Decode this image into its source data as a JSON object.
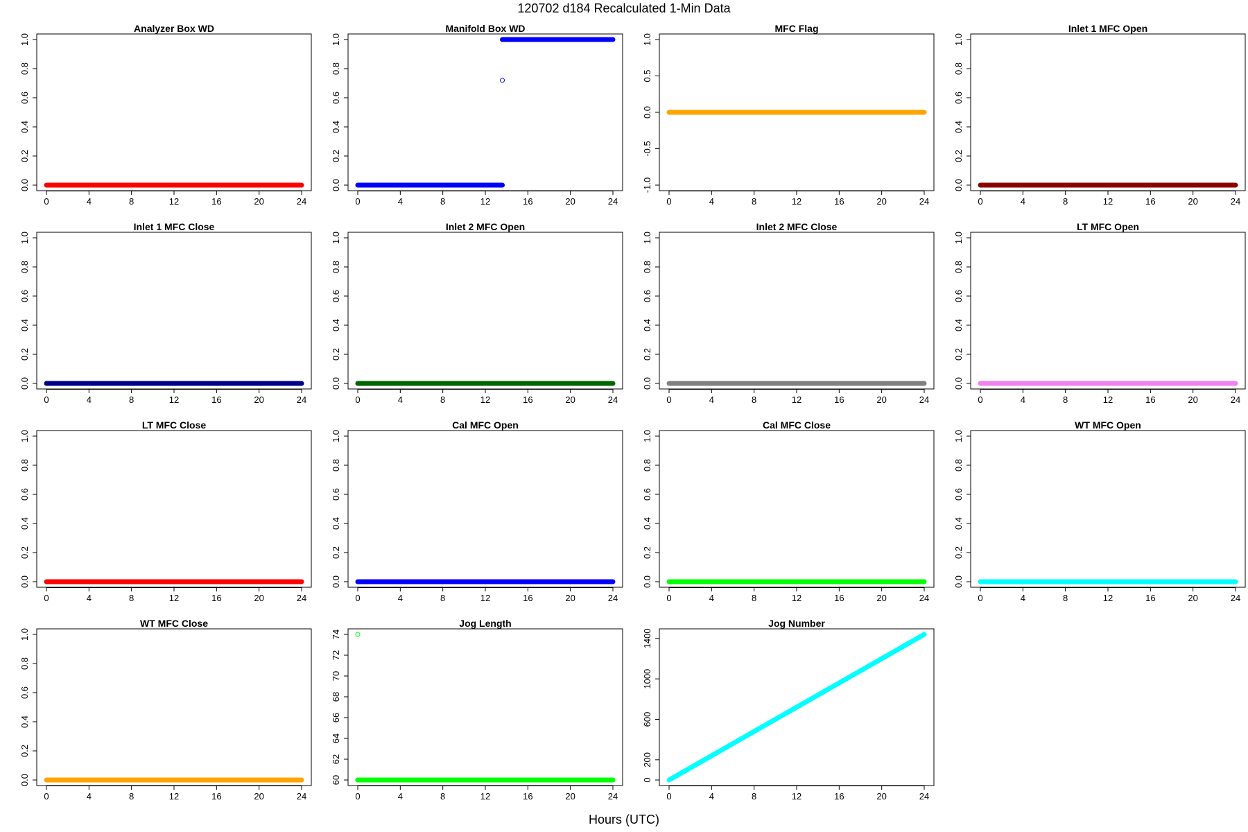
{
  "figure": {
    "title": "120702   d184   Recalculated 1-Min Data",
    "xlabel": "Hours (UTC)"
  },
  "chart_data": [
    {
      "type": "scatter",
      "title": "Analyzer Box WD",
      "color": "#ff0000",
      "xlim": [
        0,
        24
      ],
      "ylim": [
        0,
        1
      ],
      "yticks": [
        "0.0",
        "0.2",
        "0.4",
        "0.6",
        "0.8",
        "1.0"
      ],
      "xticks": [
        "0",
        "4",
        "8",
        "12",
        "16",
        "20",
        "24"
      ],
      "series": [
        {
          "segments": [
            {
              "x0": 0,
              "x1": 24,
              "y": 0
            }
          ],
          "points": []
        }
      ]
    },
    {
      "type": "scatter",
      "title": "Manifold Box WD",
      "color": "#0000ff",
      "xlim": [
        0,
        24
      ],
      "ylim": [
        0,
        1
      ],
      "yticks": [
        "0.0",
        "0.2",
        "0.4",
        "0.6",
        "0.8",
        "1.0"
      ],
      "xticks": [
        "0",
        "4",
        "8",
        "12",
        "16",
        "20",
        "24"
      ],
      "series": [
        {
          "segments": [
            {
              "x0": 0,
              "x1": 13.6,
              "y": 0
            },
            {
              "x0": 13.6,
              "x1": 24,
              "y": 1
            }
          ],
          "points": [
            {
              "x": 13.6,
              "y": 0.72
            }
          ]
        }
      ]
    },
    {
      "type": "scatter",
      "title": "MFC Flag",
      "color": "#ffa500",
      "xlim": [
        0,
        24
      ],
      "ylim": [
        -1,
        1
      ],
      "yticks": [
        "-1.0",
        "-0.5",
        "0.0",
        "0.5",
        "1.0"
      ],
      "xticks": [
        "0",
        "4",
        "8",
        "12",
        "16",
        "20",
        "24"
      ],
      "series": [
        {
          "segments": [
            {
              "x0": 0,
              "x1": 24,
              "y": 0
            }
          ],
          "points": []
        }
      ]
    },
    {
      "type": "scatter",
      "title": "Inlet 1 MFC Open",
      "color": "#8b0000",
      "xlim": [
        0,
        24
      ],
      "ylim": [
        0,
        1
      ],
      "yticks": [
        "0.0",
        "0.2",
        "0.4",
        "0.6",
        "0.8",
        "1.0"
      ],
      "xticks": [
        "0",
        "4",
        "8",
        "12",
        "16",
        "20",
        "24"
      ],
      "series": [
        {
          "segments": [
            {
              "x0": 0,
              "x1": 24,
              "y": 0
            }
          ],
          "points": []
        }
      ]
    },
    {
      "type": "scatter",
      "title": "Inlet 1 MFC Close",
      "color": "#00008b",
      "xlim": [
        0,
        24
      ],
      "ylim": [
        0,
        1
      ],
      "yticks": [
        "0.0",
        "0.2",
        "0.4",
        "0.6",
        "0.8",
        "1.0"
      ],
      "xticks": [
        "0",
        "4",
        "8",
        "12",
        "16",
        "20",
        "24"
      ],
      "series": [
        {
          "segments": [
            {
              "x0": 0,
              "x1": 24,
              "y": 0
            }
          ],
          "points": []
        }
      ]
    },
    {
      "type": "scatter",
      "title": "Inlet 2 MFC Open",
      "color": "#006400",
      "xlim": [
        0,
        24
      ],
      "ylim": [
        0,
        1
      ],
      "yticks": [
        "0.0",
        "0.2",
        "0.4",
        "0.6",
        "0.8",
        "1.0"
      ],
      "xticks": [
        "0",
        "4",
        "8",
        "12",
        "16",
        "20",
        "24"
      ],
      "series": [
        {
          "segments": [
            {
              "x0": 0,
              "x1": 24,
              "y": 0
            }
          ],
          "points": []
        }
      ]
    },
    {
      "type": "scatter",
      "title": "Inlet 2 MFC Close",
      "color": "#808080",
      "xlim": [
        0,
        24
      ],
      "ylim": [
        0,
        1
      ],
      "yticks": [
        "0.0",
        "0.2",
        "0.4",
        "0.6",
        "0.8",
        "1.0"
      ],
      "xticks": [
        "0",
        "4",
        "8",
        "12",
        "16",
        "20",
        "24"
      ],
      "series": [
        {
          "segments": [
            {
              "x0": 0,
              "x1": 24,
              "y": 0
            }
          ],
          "points": []
        }
      ]
    },
    {
      "type": "scatter",
      "title": "LT MFC Open",
      "color": "#ee82ee",
      "xlim": [
        0,
        24
      ],
      "ylim": [
        0,
        1
      ],
      "yticks": [
        "0.0",
        "0.2",
        "0.4",
        "0.6",
        "0.8",
        "1.0"
      ],
      "xticks": [
        "0",
        "4",
        "8",
        "12",
        "16",
        "20",
        "24"
      ],
      "series": [
        {
          "segments": [
            {
              "x0": 0,
              "x1": 24,
              "y": 0
            }
          ],
          "points": []
        }
      ]
    },
    {
      "type": "scatter",
      "title": "LT MFC Close",
      "color": "#ff0000",
      "xlim": [
        0,
        24
      ],
      "ylim": [
        0,
        1
      ],
      "yticks": [
        "0.0",
        "0.2",
        "0.4",
        "0.6",
        "0.8",
        "1.0"
      ],
      "xticks": [
        "0",
        "4",
        "8",
        "12",
        "16",
        "20",
        "24"
      ],
      "series": [
        {
          "segments": [
            {
              "x0": 0,
              "x1": 24,
              "y": 0
            }
          ],
          "points": []
        }
      ]
    },
    {
      "type": "scatter",
      "title": "Cal MFC Open",
      "color": "#0000ff",
      "xlim": [
        0,
        24
      ],
      "ylim": [
        0,
        1
      ],
      "yticks": [
        "0.0",
        "0.2",
        "0.4",
        "0.6",
        "0.8",
        "1.0"
      ],
      "xticks": [
        "0",
        "4",
        "8",
        "12",
        "16",
        "20",
        "24"
      ],
      "series": [
        {
          "segments": [
            {
              "x0": 0,
              "x1": 24,
              "y": 0
            }
          ],
          "points": []
        }
      ]
    },
    {
      "type": "scatter",
      "title": "Cal MFC Close",
      "color": "#00ff00",
      "xlim": [
        0,
        24
      ],
      "ylim": [
        0,
        1
      ],
      "yticks": [
        "0.0",
        "0.2",
        "0.4",
        "0.6",
        "0.8",
        "1.0"
      ],
      "xticks": [
        "0",
        "4",
        "8",
        "12",
        "16",
        "20",
        "24"
      ],
      "series": [
        {
          "segments": [
            {
              "x0": 0,
              "x1": 24,
              "y": 0
            }
          ],
          "points": []
        }
      ]
    },
    {
      "type": "scatter",
      "title": "WT MFC Open",
      "color": "#00ffff",
      "xlim": [
        0,
        24
      ],
      "ylim": [
        0,
        1
      ],
      "yticks": [
        "0.0",
        "0.2",
        "0.4",
        "0.6",
        "0.8",
        "1.0"
      ],
      "xticks": [
        "0",
        "4",
        "8",
        "12",
        "16",
        "20",
        "24"
      ],
      "series": [
        {
          "segments": [
            {
              "x0": 0,
              "x1": 24,
              "y": 0
            }
          ],
          "points": []
        }
      ]
    },
    {
      "type": "scatter",
      "title": "WT MFC Close",
      "color": "#ffa500",
      "xlim": [
        0,
        24
      ],
      "ylim": [
        0,
        1
      ],
      "yticks": [
        "0.0",
        "0.2",
        "0.4",
        "0.6",
        "0.8",
        "1.0"
      ],
      "xticks": [
        "0",
        "4",
        "8",
        "12",
        "16",
        "20",
        "24"
      ],
      "series": [
        {
          "segments": [
            {
              "x0": 0,
              "x1": 24,
              "y": 0
            }
          ],
          "points": []
        }
      ]
    },
    {
      "type": "scatter",
      "title": "Jog Length",
      "color": "#00ff00",
      "xlim": [
        0,
        24
      ],
      "ylim": [
        60,
        74
      ],
      "yticks": [
        "60",
        "62",
        "64",
        "66",
        "68",
        "70",
        "72",
        "74"
      ],
      "xticks": [
        "0",
        "4",
        "8",
        "12",
        "16",
        "20",
        "24"
      ],
      "series": [
        {
          "segments": [
            {
              "x0": 0,
              "x1": 24,
              "y": 60
            }
          ],
          "points": [
            {
              "x": 0,
              "y": 74
            }
          ]
        }
      ]
    },
    {
      "type": "scatter",
      "title": "Jog Number",
      "color": "#00ffff",
      "xlim": [
        0,
        24
      ],
      "ylim": [
        0,
        1440
      ],
      "yticks": [
        "0",
        "200",
        "600",
        "1000",
        "1400"
      ],
      "xticks": [
        "0",
        "4",
        "8",
        "12",
        "16",
        "20",
        "24"
      ],
      "series": [
        {
          "lines": [
            {
              "x0": 0,
              "y0": 0,
              "x1": 24,
              "y1": 1440
            }
          ],
          "points": []
        }
      ]
    }
  ]
}
